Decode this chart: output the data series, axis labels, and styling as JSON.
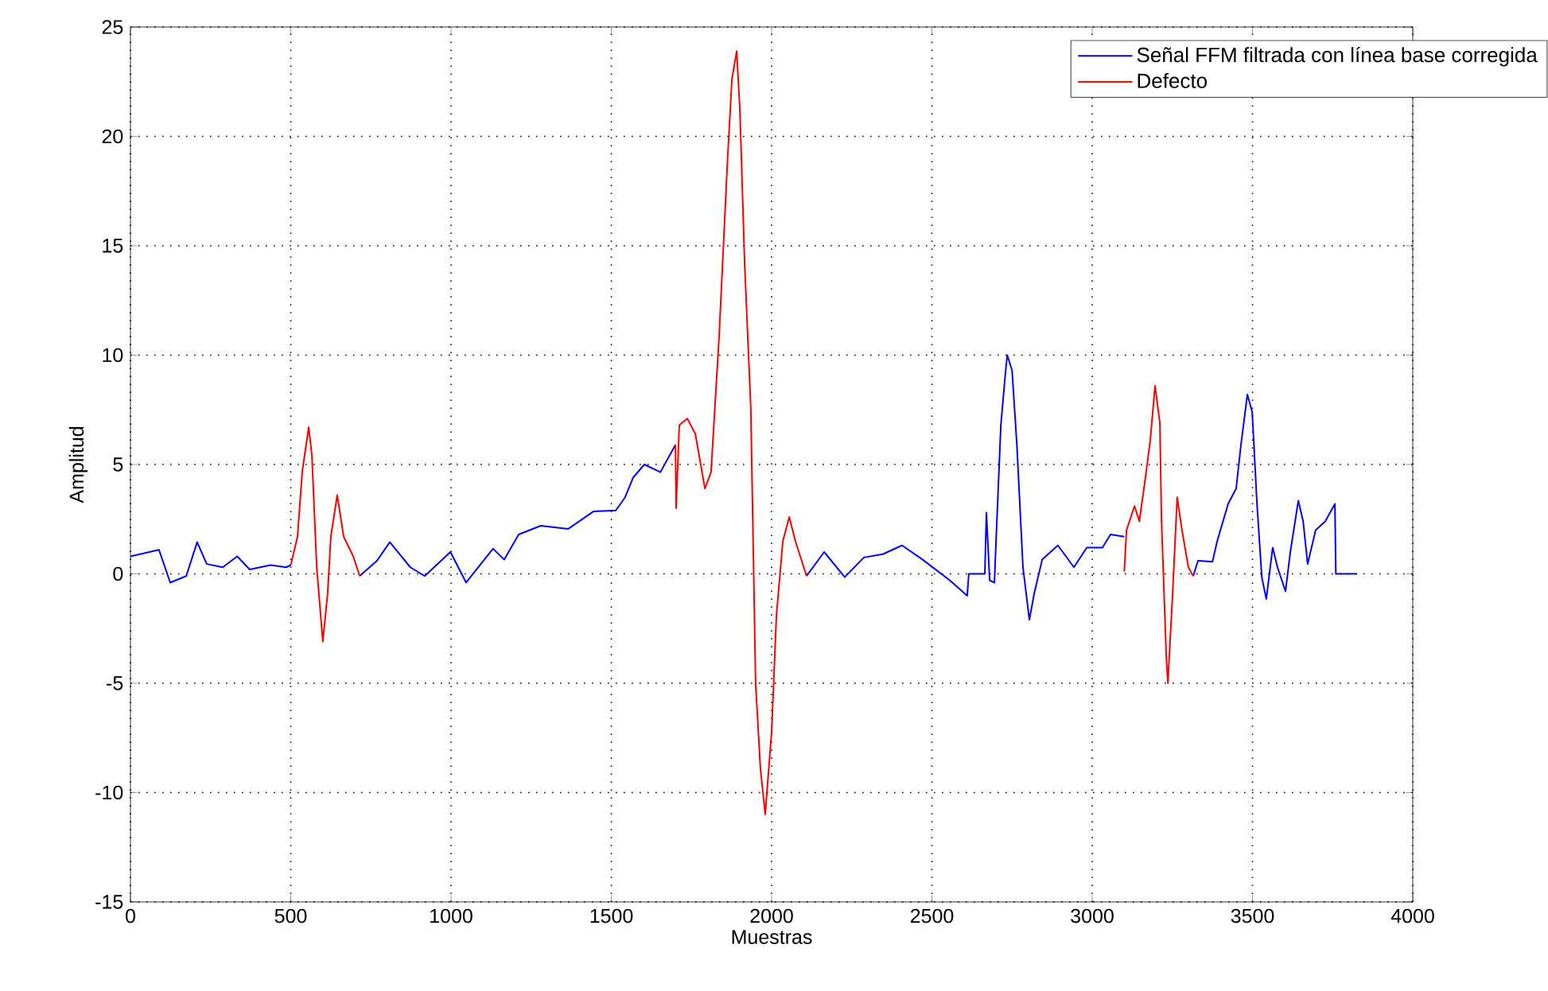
{
  "chart_data": {
    "type": "line",
    "xlabel": "Muestras",
    "ylabel": "Amplitud",
    "xlim": [
      0,
      4000
    ],
    "xticks": [
      0,
      500,
      1000,
      1500,
      2000,
      2500,
      3000,
      3500,
      4000
    ],
    "ylim": [
      -15,
      25
    ],
    "yticks": [
      -15,
      -10,
      -5,
      0,
      5,
      10,
      15,
      20,
      25
    ],
    "grid": true,
    "legend": "top right",
    "series": [
      {
        "name": "Señal FFM filtrada con línea base corregida",
        "color": "#0000ff",
        "x": [
          0,
          89,
          124,
          174,
          208,
          238,
          288,
          333,
          372,
          437,
          486,
          500,
          null,
          715,
          769,
          809,
          873,
          918,
          998,
          1047,
          1131,
          1166,
          1211,
          1280,
          1365,
          1444,
          1514,
          1543,
          1568,
          1603,
          1653,
          1700,
          null,
          2109,
          2164,
          2228,
          2288,
          2347,
          2407,
          2471,
          2556,
          2610,
          2615,
          2665,
          2670,
          2680,
          2695,
          2700,
          2715,
          2730,
          2735,
          2750,
          2765,
          2784,
          2804,
          2819,
          2844,
          2893,
          2943,
          2983,
          3032,
          3057,
          3100,
          null,
          3315,
          3330,
          3375,
          3390,
          3424,
          3449,
          3464,
          3484,
          3499,
          3514,
          3529,
          3543,
          3563,
          3578,
          3603,
          3618,
          3643,
          3658,
          3672,
          3697,
          3727,
          3757,
          3760,
          3826
        ],
        "values": [
          0.8,
          1.1,
          -0.4,
          -0.1,
          1.45,
          0.45,
          0.3,
          0.8,
          0.2,
          0.4,
          0.3,
          0.4,
          null,
          -0.1,
          0.6,
          1.45,
          0.3,
          -0.1,
          1.0,
          -0.4,
          1.15,
          0.65,
          1.8,
          2.2,
          2.05,
          2.85,
          2.9,
          3.5,
          4.4,
          5.0,
          4.65,
          5.9,
          null,
          -0.1,
          1.0,
          -0.15,
          0.75,
          0.9,
          1.3,
          0.65,
          -0.3,
          -1.0,
          0,
          0,
          2.8,
          -0.3,
          -0.4,
          1.5,
          6.8,
          9.3,
          10.0,
          9.3,
          5.9,
          0.3,
          -2.1,
          -0.9,
          0.65,
          1.3,
          0.3,
          1.2,
          1.2,
          1.8,
          1.7,
          null,
          -0.1,
          0.6,
          0.55,
          1.5,
          3.2,
          3.9,
          5.9,
          8.2,
          7.4,
          3.2,
          -0.15,
          -1.15,
          1.2,
          0.3,
          -0.8,
          1.0,
          3.35,
          2.4,
          0.45,
          2.0,
          2.4,
          3.2,
          0,
          0
        ]
      },
      {
        "name": "Defecto",
        "color": "#ff0000",
        "x": [
          500,
          521,
          536,
          556,
          566,
          581,
          600,
          615,
          625,
          645,
          665,
          695,
          715,
          null,
          1700,
          1702,
          1712,
          1737,
          1762,
          1792,
          1811,
          1836,
          1861,
          1876,
          1891,
          1901,
          1916,
          1935,
          1950,
          1965,
          1980,
          2000,
          2015,
          2035,
          2055,
          2074,
          2109,
          null,
          3100,
          3107,
          3132,
          3147,
          3166,
          3181,
          3196,
          3211,
          3216,
          3231,
          3236,
          3250,
          3265,
          3280,
          3300,
          3315
        ],
        "values": [
          0.4,
          1.7,
          4.7,
          6.7,
          5.4,
          0.3,
          -3.1,
          -0.9,
          1.7,
          3.6,
          1.7,
          0.8,
          -0.1,
          null,
          5.9,
          3.0,
          6.8,
          7.1,
          6.4,
          3.9,
          4.65,
          10.8,
          18.5,
          22.6,
          23.9,
          21.2,
          14.1,
          7.6,
          -5.0,
          -8.9,
          -11.0,
          -7.2,
          -1.9,
          1.5,
          2.6,
          1.5,
          -0.1,
          null,
          0.1,
          2.0,
          3.1,
          2.4,
          4.4,
          6.1,
          8.6,
          6.9,
          2.5,
          -3.8,
          -5.0,
          -1.15,
          3.5,
          2.0,
          0.3,
          -0.1
        ]
      }
    ]
  }
}
